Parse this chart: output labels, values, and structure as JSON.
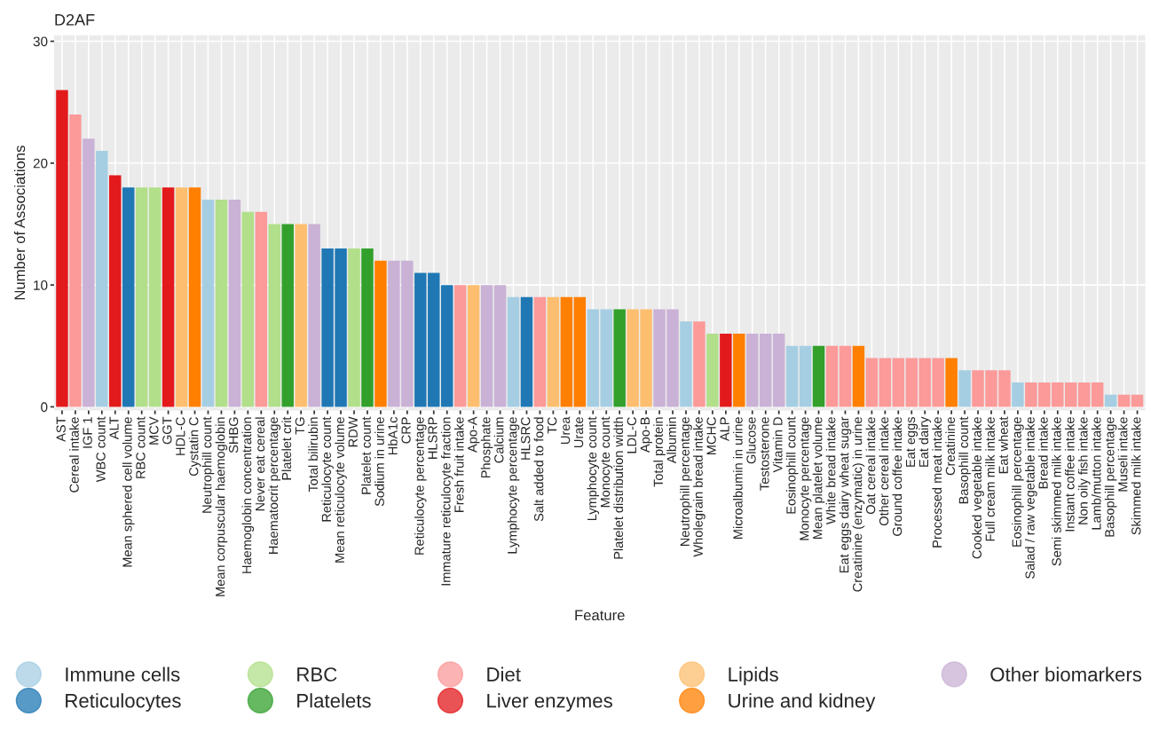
{
  "chart_data": {
    "type": "bar",
    "title": "D2AF",
    "xlabel": "Feature",
    "ylabel": "Number of Associations",
    "categories": [
      "AST",
      "Cereal intake",
      "IGF 1",
      "WBC count",
      "ALT",
      "Mean sphered cell volume",
      "RBC count",
      "MCV",
      "GGT",
      "HDL-C",
      "Cystatin C",
      "Neutrophill count",
      "Mean corpuscular haemoglobin",
      "SHBG",
      "Haemoglobin concentration",
      "Never eat cereal",
      "Haematocrit percentage",
      "Platelet crit",
      "TG",
      "Total bilirubin",
      "Reticulocyte count",
      "Mean reticulocyte volume",
      "RDW",
      "Platelet count",
      "Sodium in urine",
      "HbA1c",
      "CRP",
      "Reticulocyte percentage",
      "HLSRP",
      "Immature reticulocyte fraction",
      "Fresh fruit intake",
      "Apo-A",
      "Phosphate",
      "Calcium",
      "Lymphocyte percentage",
      "HLSRC",
      "Salt added to food",
      "TC",
      "Urea",
      "Urate",
      "Lymphocyte count",
      "Monocyte count",
      "Platelet distribution width",
      "LDL-C",
      "Apo-B",
      "Total protein",
      "Albumin",
      "Neutrophill percentage",
      "Wholegrain bread intake",
      "MCHC",
      "ALP",
      "Microalbumin in urine",
      "Glucose",
      "Testosterone",
      "Vitamin D",
      "Eosinophill count",
      "Monocyte percentage",
      "Mean platelet volume",
      "White bread intake",
      "Eat eggs dairy wheat sugar",
      "Creatinine (enzymatic) in urine",
      "Oat cereal intake",
      "Other cereal intake",
      "Ground coffee intake",
      "Eat eggs",
      "Eat dairy",
      "Processed meat intake",
      "Creatinine",
      "Basophill count",
      "Cooked vegetable intake",
      "Full cream milk intake",
      "Eat wheat",
      "Eosinophill percentage",
      "Salad / raw vegetable intake",
      "Bread intake",
      "Semi skimmed milk intake",
      "Instant coffee intake",
      "Non oily fish intake",
      "Lamb/mutton intake",
      "Basophill percentage",
      "Museli intake",
      "Skimmed milk intake"
    ],
    "series": [
      {
        "name": "Immune cells",
        "color": "#a6cee3",
        "values": [
          null,
          null,
          null,
          21,
          null,
          null,
          null,
          null,
          null,
          null,
          null,
          17,
          null,
          null,
          null,
          null,
          null,
          null,
          null,
          null,
          null,
          null,
          null,
          null,
          null,
          null,
          null,
          null,
          null,
          null,
          null,
          null,
          null,
          null,
          9,
          null,
          null,
          null,
          null,
          null,
          8,
          8,
          null,
          null,
          null,
          null,
          null,
          7,
          null,
          null,
          null,
          null,
          null,
          null,
          null,
          5,
          5,
          null,
          null,
          null,
          null,
          null,
          null,
          null,
          null,
          null,
          null,
          null,
          3,
          null,
          null,
          null,
          2,
          null,
          null,
          null,
          null,
          null,
          null,
          1,
          null,
          null
        ]
      },
      {
        "name": "Reticulocytes",
        "color": "#1f78b4",
        "values": [
          null,
          null,
          null,
          null,
          null,
          18,
          null,
          null,
          null,
          null,
          null,
          null,
          null,
          null,
          null,
          null,
          null,
          null,
          null,
          null,
          13,
          13,
          null,
          null,
          null,
          null,
          null,
          11,
          11,
          10,
          null,
          null,
          null,
          null,
          null,
          9,
          null,
          null,
          null,
          null,
          null,
          null,
          null,
          null,
          null,
          null,
          null,
          null,
          null,
          null,
          null,
          null,
          null,
          null,
          null,
          null,
          null,
          null,
          null,
          null,
          null,
          null,
          null,
          null,
          null,
          null,
          null,
          null,
          null,
          null,
          null,
          null,
          null,
          null,
          null,
          null,
          null,
          null,
          null,
          null,
          null,
          null
        ]
      },
      {
        "name": "RBC",
        "color": "#b2df8a",
        "values": [
          null,
          null,
          null,
          null,
          null,
          null,
          18,
          18,
          null,
          null,
          null,
          null,
          17,
          null,
          16,
          null,
          15,
          null,
          null,
          null,
          null,
          null,
          13,
          null,
          null,
          null,
          null,
          null,
          null,
          null,
          null,
          null,
          null,
          null,
          null,
          null,
          null,
          null,
          null,
          null,
          null,
          null,
          null,
          null,
          null,
          null,
          null,
          null,
          null,
          6,
          null,
          null,
          null,
          null,
          null,
          null,
          null,
          null,
          null,
          null,
          null,
          null,
          null,
          null,
          null,
          null,
          null,
          null,
          null,
          null,
          null,
          null,
          null,
          null,
          null,
          null,
          null,
          null,
          null,
          null,
          null,
          null
        ]
      },
      {
        "name": "Platelets",
        "color": "#33a02c",
        "values": [
          null,
          null,
          null,
          null,
          null,
          null,
          null,
          null,
          null,
          null,
          null,
          null,
          null,
          null,
          null,
          null,
          null,
          15,
          null,
          null,
          null,
          null,
          null,
          13,
          null,
          null,
          null,
          null,
          null,
          null,
          null,
          null,
          null,
          null,
          null,
          null,
          null,
          null,
          null,
          null,
          null,
          null,
          8,
          null,
          null,
          null,
          null,
          null,
          null,
          null,
          null,
          null,
          null,
          null,
          null,
          null,
          null,
          5,
          null,
          null,
          null,
          null,
          null,
          null,
          null,
          null,
          null,
          null,
          null,
          null,
          null,
          null,
          null,
          null,
          null,
          null,
          null,
          null,
          null,
          null,
          null,
          null
        ]
      },
      {
        "name": "Diet",
        "color": "#fb9a99",
        "values": [
          null,
          24,
          null,
          null,
          null,
          null,
          null,
          null,
          null,
          null,
          null,
          null,
          null,
          null,
          null,
          16,
          null,
          null,
          null,
          null,
          null,
          null,
          null,
          null,
          null,
          null,
          null,
          null,
          null,
          null,
          10,
          null,
          null,
          null,
          null,
          null,
          9,
          null,
          null,
          null,
          null,
          null,
          null,
          null,
          null,
          null,
          null,
          null,
          7,
          null,
          null,
          null,
          null,
          null,
          null,
          null,
          null,
          null,
          5,
          5,
          null,
          4,
          4,
          4,
          4,
          4,
          4,
          null,
          null,
          3,
          3,
          3,
          null,
          2,
          2,
          2,
          2,
          2,
          2,
          null,
          1,
          1
        ]
      },
      {
        "name": "Liver enzymes",
        "color": "#e31a1c",
        "values": [
          26,
          null,
          null,
          null,
          19,
          null,
          null,
          null,
          18,
          null,
          null,
          null,
          null,
          null,
          null,
          null,
          null,
          null,
          null,
          null,
          null,
          null,
          null,
          null,
          null,
          null,
          null,
          null,
          null,
          null,
          null,
          null,
          null,
          null,
          null,
          null,
          null,
          null,
          null,
          null,
          null,
          null,
          null,
          null,
          null,
          null,
          null,
          null,
          null,
          null,
          6,
          null,
          null,
          null,
          null,
          null,
          null,
          null,
          null,
          null,
          null,
          null,
          null,
          null,
          null,
          null,
          null,
          null,
          null,
          null,
          null,
          null,
          null,
          null,
          null,
          null,
          null,
          null,
          null,
          null,
          null,
          null
        ]
      },
      {
        "name": "Lipids",
        "color": "#fdbf6f",
        "values": [
          null,
          null,
          null,
          null,
          null,
          null,
          null,
          null,
          null,
          18,
          null,
          null,
          null,
          null,
          null,
          null,
          null,
          null,
          15,
          null,
          null,
          null,
          null,
          null,
          null,
          null,
          null,
          null,
          null,
          null,
          null,
          10,
          null,
          null,
          null,
          null,
          null,
          9,
          null,
          null,
          null,
          null,
          null,
          8,
          8,
          null,
          null,
          null,
          null,
          null,
          null,
          null,
          null,
          null,
          null,
          null,
          null,
          null,
          null,
          null,
          null,
          null,
          null,
          null,
          null,
          null,
          null,
          null,
          null,
          null,
          null,
          null,
          null,
          null,
          null,
          null,
          null,
          null,
          null,
          null,
          null,
          null
        ]
      },
      {
        "name": "Urine and kidney",
        "color": "#ff7f00",
        "values": [
          null,
          null,
          null,
          null,
          null,
          null,
          null,
          null,
          null,
          null,
          18,
          null,
          null,
          null,
          null,
          null,
          null,
          null,
          null,
          null,
          null,
          null,
          null,
          null,
          12,
          null,
          null,
          null,
          null,
          null,
          null,
          null,
          null,
          null,
          null,
          null,
          null,
          null,
          9,
          9,
          null,
          null,
          null,
          null,
          null,
          null,
          null,
          null,
          null,
          null,
          null,
          6,
          null,
          null,
          null,
          null,
          null,
          null,
          null,
          null,
          5,
          null,
          null,
          null,
          null,
          null,
          null,
          4,
          null,
          null,
          null,
          null,
          null,
          null,
          null,
          null,
          null,
          null,
          null,
          null,
          null,
          null
        ]
      },
      {
        "name": "Other biomarkers",
        "color": "#cab2d6",
        "values": [
          null,
          null,
          22,
          null,
          null,
          null,
          null,
          null,
          null,
          null,
          null,
          null,
          null,
          17,
          null,
          null,
          null,
          null,
          null,
          15,
          null,
          null,
          null,
          null,
          null,
          12,
          12,
          null,
          null,
          null,
          null,
          null,
          10,
          10,
          null,
          null,
          null,
          null,
          null,
          null,
          null,
          null,
          null,
          null,
          null,
          8,
          8,
          null,
          null,
          null,
          null,
          null,
          6,
          6,
          6,
          null,
          null,
          null,
          null,
          null,
          null,
          null,
          null,
          null,
          null,
          null,
          null,
          null,
          null,
          null,
          null,
          null,
          null,
          null,
          null,
          null,
          null,
          null,
          null,
          null,
          null,
          null
        ]
      }
    ],
    "ylim": [
      -0.3,
      30.5
    ],
    "yticks": [
      0,
      10,
      20,
      30
    ],
    "grid": true,
    "legend": "bottom",
    "marker": "circle"
  }
}
